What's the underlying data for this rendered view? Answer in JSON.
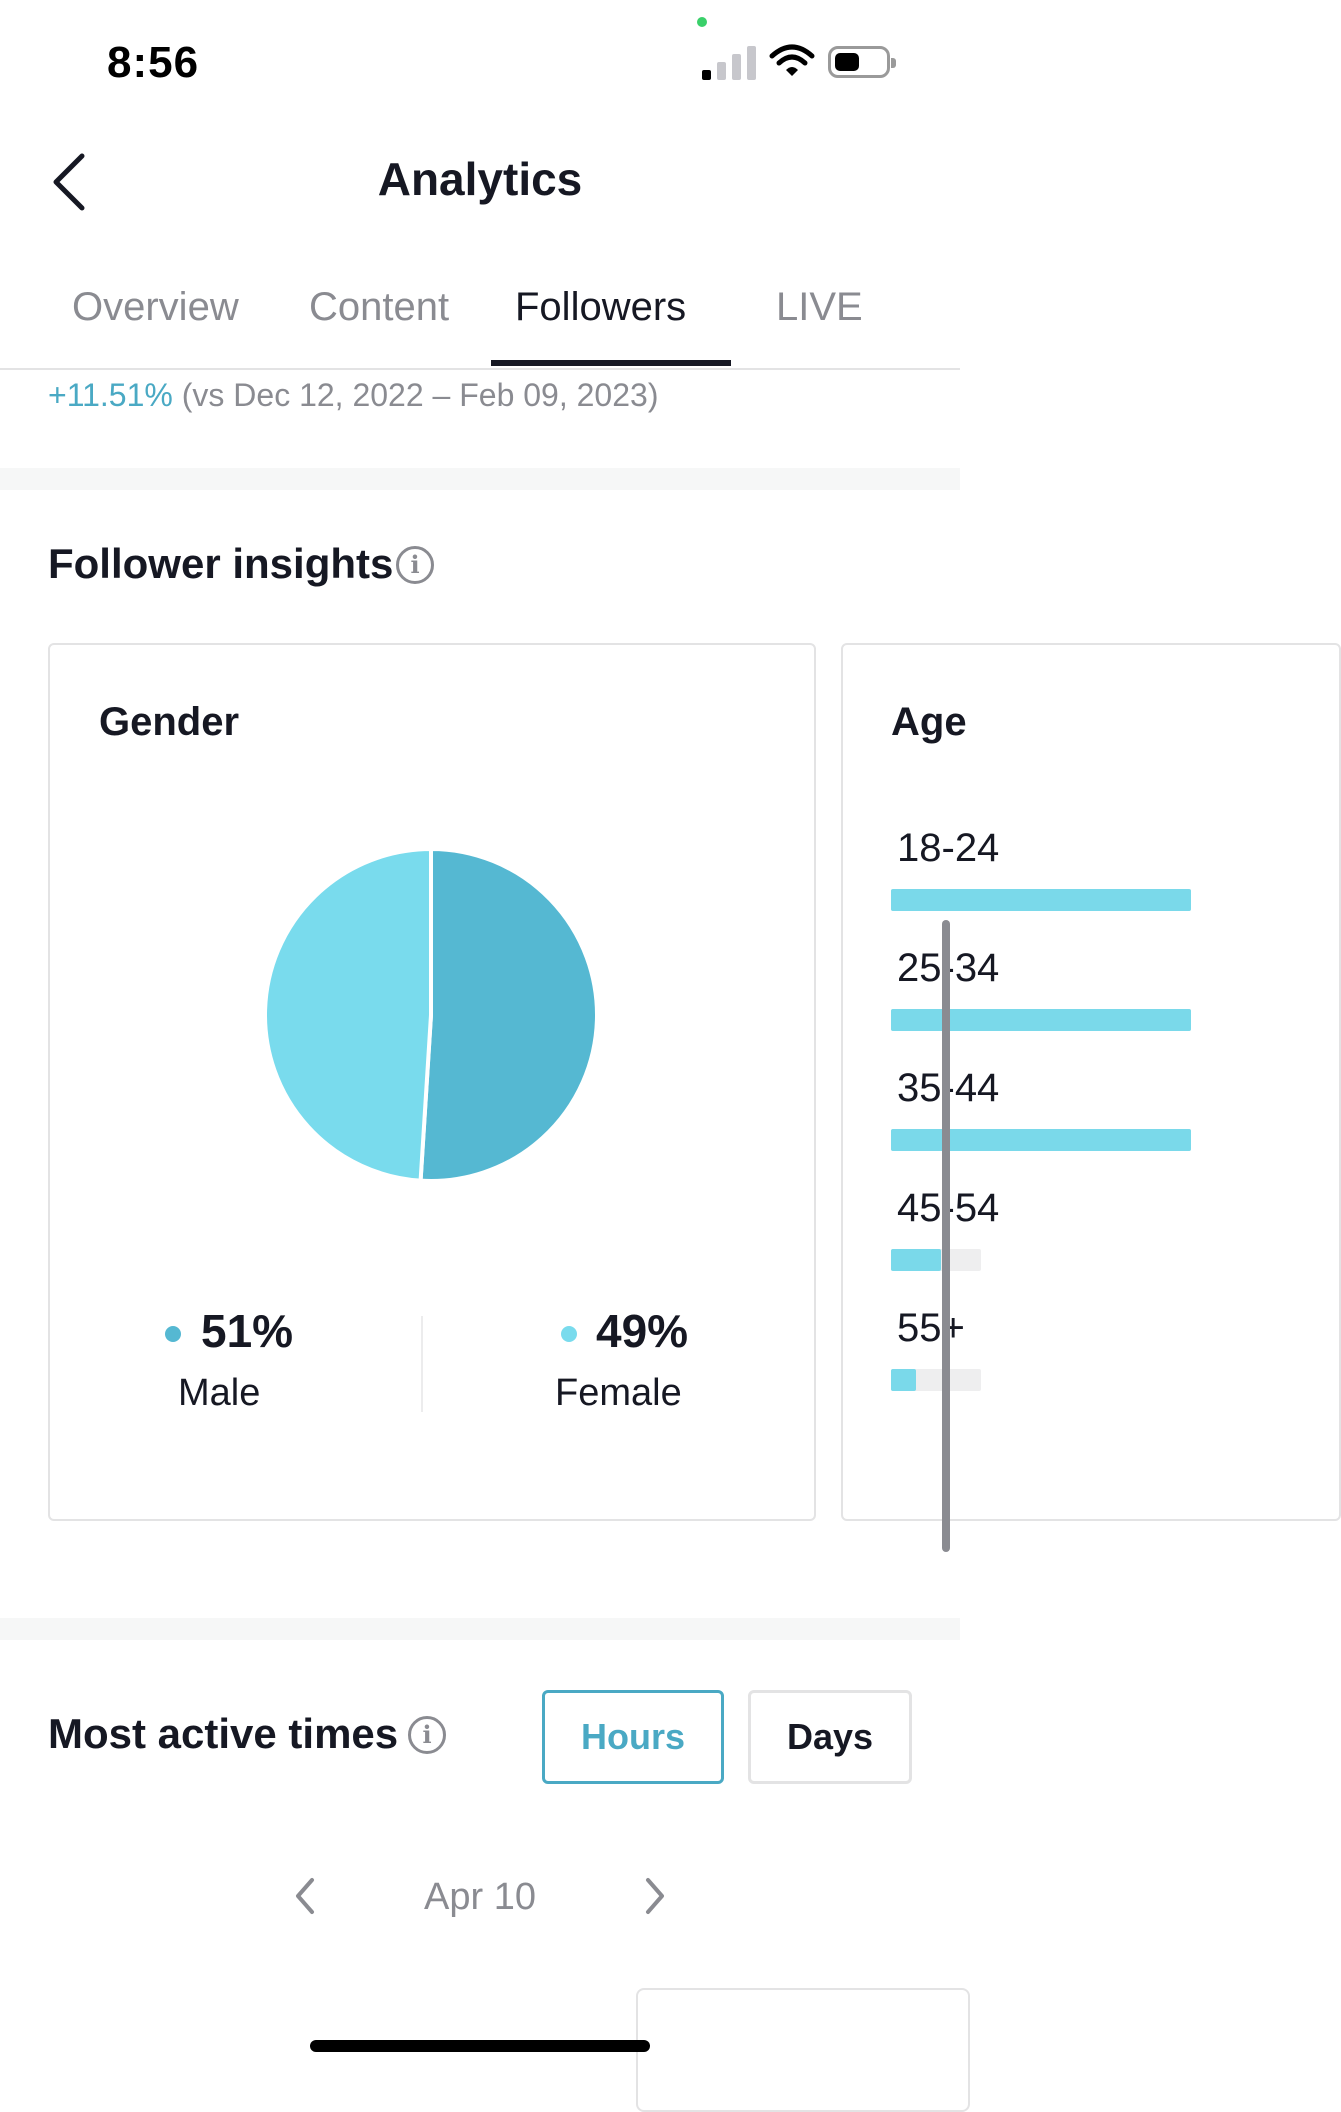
{
  "status_bar": {
    "time": "8:56"
  },
  "header": {
    "title": "Analytics"
  },
  "tabs": [
    {
      "label": "Overview",
      "active": false
    },
    {
      "label": "Content",
      "active": false
    },
    {
      "label": "Followers",
      "active": true
    },
    {
      "label": "LIVE",
      "active": false
    }
  ],
  "growth": {
    "change": "+11.51%",
    "comparison": "(vs Dec 12, 2022 – Feb 09, 2023)"
  },
  "follower_insights": {
    "title": "Follower insights",
    "gender_card": {
      "title": "Gender",
      "male": {
        "pct": "51%",
        "label": "Male",
        "value": 51,
        "color": "#55b8d2"
      },
      "female": {
        "pct": "49%",
        "label": "Female",
        "value": 49,
        "color": "#79dbed"
      }
    },
    "age_card": {
      "title": "Age",
      "rows": [
        {
          "label": "18-24",
          "fraction": 1.0
        },
        {
          "label": "25-34",
          "fraction": 1.0
        },
        {
          "label": "35-44",
          "fraction": 1.0
        },
        {
          "label": "45-54",
          "fraction": 0.55
        },
        {
          "label": "55+",
          "fraction": 0.28
        }
      ]
    }
  },
  "most_active": {
    "title": "Most active times",
    "hours_label": "Hours",
    "days_label": "Days",
    "date": "Apr 10"
  },
  "chart_data": {
    "type": "pie",
    "categories": [
      "Male",
      "Female"
    ],
    "values": [
      51,
      49
    ]
  }
}
